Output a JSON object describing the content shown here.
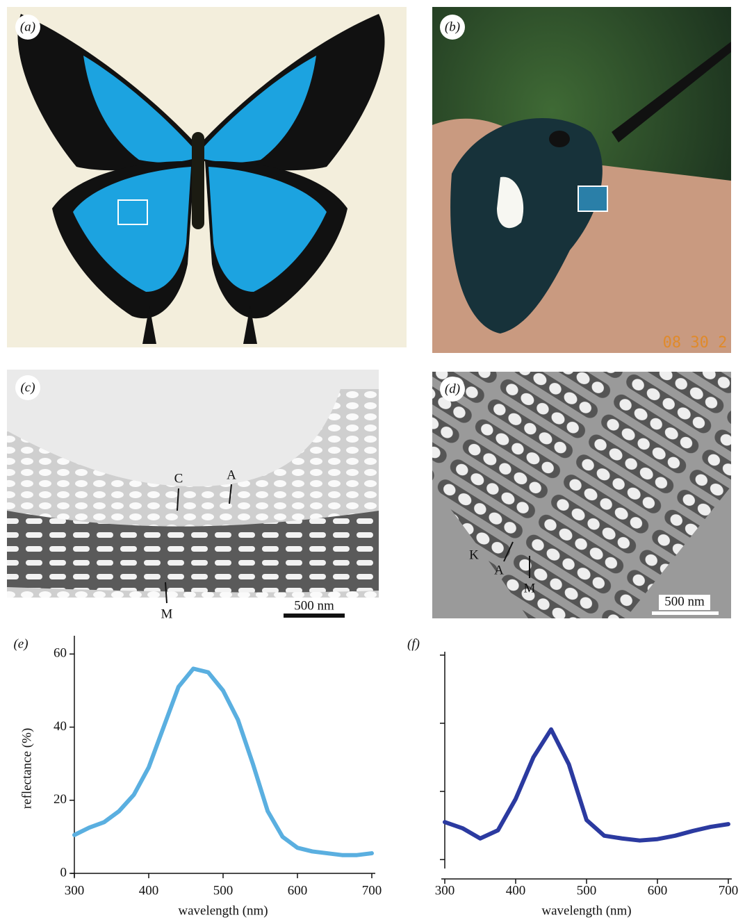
{
  "panels": {
    "a": {
      "label": "(a)"
    },
    "b": {
      "label": "(b)",
      "timestamp": "08 30 2"
    },
    "c": {
      "label": "(c)",
      "annotations": [
        "C",
        "A",
        "M"
      ],
      "scale_bar": "500 nm"
    },
    "d": {
      "label": "(d)",
      "annotations": [
        "K",
        "A",
        "M"
      ],
      "scale_bar": "500 nm"
    }
  },
  "chart_data": [
    {
      "type": "line",
      "panel_label": "(e)",
      "xlabel": "wavelength (nm)",
      "ylabel": "reflectance (%)",
      "x": [
        300,
        320,
        340,
        360,
        380,
        400,
        420,
        440,
        460,
        480,
        500,
        520,
        540,
        560,
        580,
        600,
        620,
        640,
        660,
        680,
        700
      ],
      "series": [
        {
          "color": "#5aafe0",
          "values": [
            10.5,
            12.5,
            14,
            17,
            21.5,
            29,
            40,
            51,
            56,
            55,
            50,
            42,
            30,
            17,
            10,
            7,
            6,
            5.5,
            5,
            5,
            5.5
          ]
        }
      ],
      "xlim": [
        300,
        700
      ],
      "xticks": [
        300,
        400,
        500,
        600,
        700
      ],
      "ylim": [
        0,
        65
      ],
      "yticks": [
        0,
        20,
        40,
        60
      ],
      "show_ytick_labels": true
    },
    {
      "type": "line",
      "panel_label": "(f)",
      "xlabel": "wavelength (nm)",
      "x": [
        300,
        325,
        350,
        375,
        400,
        425,
        450,
        475,
        500,
        525,
        550,
        575,
        600,
        625,
        650,
        675,
        700
      ],
      "series": [
        {
          "color": "#2b3aa0",
          "values": [
            0.55,
            0.46,
            0.31,
            0.43,
            0.89,
            1.5,
            1.91,
            1.4,
            0.58,
            0.35,
            0.31,
            0.28,
            0.3,
            0.35,
            0.42,
            0.48,
            0.52
          ]
        }
      ],
      "xlim": [
        300,
        700
      ],
      "xticks": [
        300,
        400,
        500,
        600,
        700
      ],
      "ylim": [
        -0.08,
        3.05
      ],
      "yticks": [
        0,
        1,
        2,
        3
      ],
      "show_ytick_labels": false
    }
  ]
}
